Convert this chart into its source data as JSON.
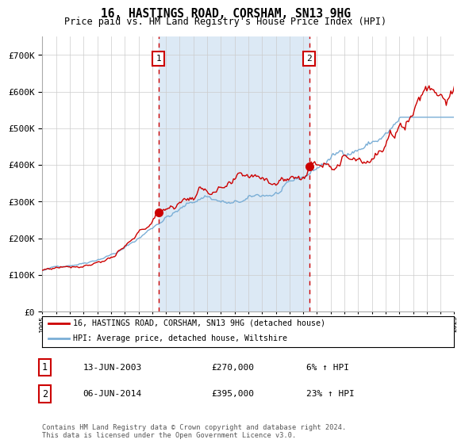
{
  "title": "16, HASTINGS ROAD, CORSHAM, SN13 9HG",
  "subtitle": "Price paid vs. HM Land Registry's House Price Index (HPI)",
  "ylim": [
    0,
    750000
  ],
  "yticks": [
    0,
    100000,
    200000,
    300000,
    400000,
    500000,
    600000,
    700000
  ],
  "ytick_labels": [
    "£0",
    "£100K",
    "£200K",
    "£300K",
    "£400K",
    "£500K",
    "£600K",
    "£700K"
  ],
  "red_line_color": "#cc0000",
  "blue_line_color": "#7aaed6",
  "bg_fill_color": "#dce9f5",
  "grid_color": "#cccccc",
  "sale1_year": 2003.45,
  "sale1_price": 270000,
  "sale2_year": 2014.43,
  "sale2_price": 395000,
  "annotation1_label": "1",
  "annotation2_label": "2",
  "legend_red": "16, HASTINGS ROAD, CORSHAM, SN13 9HG (detached house)",
  "legend_blue": "HPI: Average price, detached house, Wiltshire",
  "table_row1_num": "1",
  "table_row1_date": "13-JUN-2003",
  "table_row1_price": "£270,000",
  "table_row1_hpi": "6% ↑ HPI",
  "table_row2_num": "2",
  "table_row2_date": "06-JUN-2014",
  "table_row2_price": "£395,000",
  "table_row2_hpi": "23% ↑ HPI",
  "footnote": "Contains HM Land Registry data © Crown copyright and database right 2024.\nThis data is licensed under the Open Government Licence v3.0.",
  "start_year": 1995,
  "end_year": 2025
}
